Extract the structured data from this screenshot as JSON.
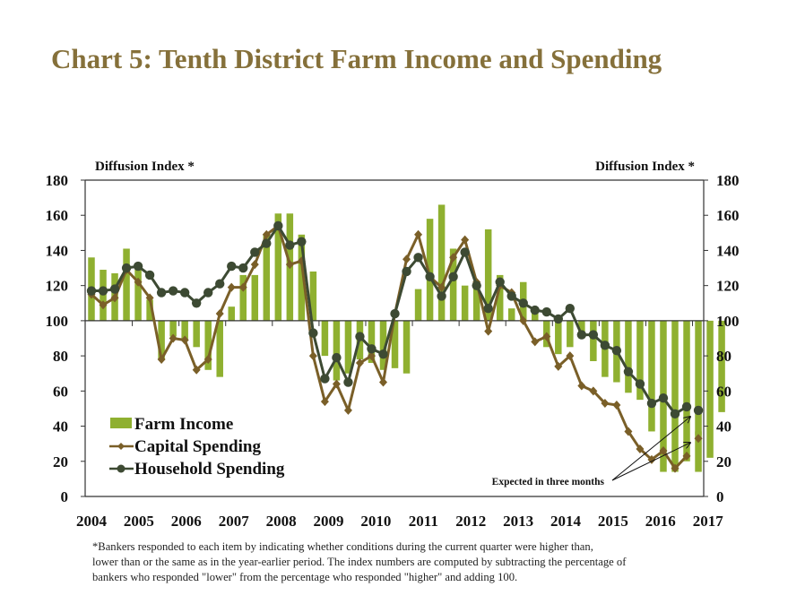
{
  "title": "Chart 5: Tenth District Farm Income and Spending",
  "footnote": [
    "*Bankers responded to each item by indicating whether conditions during the current quarter were higher than,",
    "lower than or the same as in the year-earlier period.  The index numbers are computed by subtracting the percentage of",
    "bankers who responded \"lower\" from the percentage who responded \"higher\" and adding 100."
  ],
  "chart_data": {
    "type": "bar",
    "title": "Chart 5: Tenth District Farm Income and Spending",
    "ylabel_left": "Diffusion Index *",
    "ylabel_right": "Diffusion Index *",
    "ylim": [
      0,
      180
    ],
    "yticks": [
      0,
      20,
      40,
      60,
      80,
      100,
      120,
      140,
      160,
      180
    ],
    "baseline": 100,
    "x_tick_labels": [
      "2004",
      "2005",
      "2006",
      "2007",
      "2008",
      "2009",
      "2010",
      "2011",
      "2012",
      "2013",
      "2014",
      "2015",
      "2016",
      "2017"
    ],
    "quarters_per_year": 4,
    "legend_position": "bottom-left",
    "annotation": "Expected in three months",
    "colors": {
      "farm_income": "#8fb030",
      "capital_spending": "#7a5f28",
      "household_spending": "#3d4a33",
      "title": "#85703a"
    },
    "series": [
      {
        "name": "Farm Income",
        "kind": "bar",
        "values": [
          136,
          129,
          127,
          141,
          130,
          112,
          78,
          91,
          89,
          85,
          72,
          68,
          108,
          126,
          126,
          149,
          161,
          161,
          149,
          128,
          80,
          66,
          70,
          78,
          76,
          72,
          73,
          70,
          118,
          158,
          166,
          141,
          120,
          120,
          152,
          126,
          107,
          122,
          107,
          85,
          81,
          85,
          90,
          77,
          68,
          65,
          59,
          55,
          37,
          14,
          14,
          20,
          14,
          22,
          48
        ],
        "expected": 37
      },
      {
        "name": "Capital Spending",
        "kind": "line",
        "marker": "diamond",
        "values": [
          115,
          109,
          113,
          129,
          122,
          113,
          78,
          90,
          89,
          72,
          78,
          104,
          119,
          119,
          132,
          149,
          154,
          132,
          134,
          80,
          54,
          64,
          49,
          76,
          80,
          65,
          104,
          135,
          149,
          125,
          119,
          136,
          146,
          122,
          94,
          120,
          116,
          100,
          88,
          91,
          74,
          80,
          63,
          60,
          53,
          52,
          37,
          27,
          21,
          26,
          16,
          23
        ],
        "expected": 33
      },
      {
        "name": "Household Spending",
        "kind": "line",
        "marker": "circle",
        "values": [
          117,
          117,
          118,
          130,
          131,
          126,
          116,
          117,
          116,
          110,
          116,
          121,
          131,
          130,
          139,
          144,
          154,
          143,
          145,
          93,
          67,
          79,
          65,
          91,
          84,
          81,
          104,
          128,
          136,
          125,
          114,
          125,
          139,
          120,
          107,
          122,
          114,
          110,
          106,
          105,
          101,
          107,
          92,
          92,
          86,
          83,
          71,
          64,
          53,
          56,
          47,
          51
        ],
        "expected": 49
      }
    ]
  }
}
